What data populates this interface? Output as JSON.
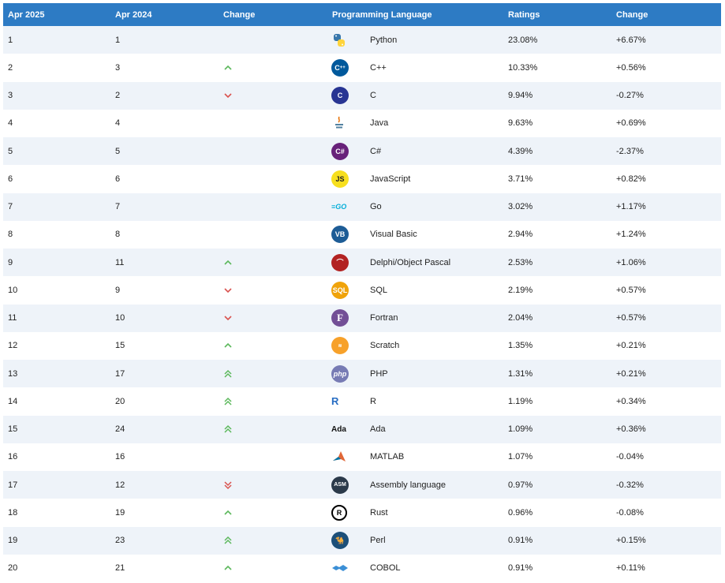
{
  "header": {
    "rank_now": "Apr 2025",
    "rank_prev": "Apr 2024",
    "change": "Change",
    "language": "Programming Language",
    "ratings": "Ratings",
    "ratings_change": "Change"
  },
  "colors": {
    "header_bg": "#2d7bc4",
    "up": "#5cb85c",
    "down": "#d9534f"
  },
  "rows": [
    {
      "now": "1",
      "prev": "1",
      "trend": "none",
      "icon": "python-icon",
      "lang": "Python",
      "rating": "23.08%",
      "delta": "+6.67%"
    },
    {
      "now": "2",
      "prev": "3",
      "trend": "up",
      "icon": "cpp-icon",
      "lang": "C++",
      "rating": "10.33%",
      "delta": "+0.56%"
    },
    {
      "now": "3",
      "prev": "2",
      "trend": "down",
      "icon": "c-icon",
      "lang": "C",
      "rating": "9.94%",
      "delta": "-0.27%"
    },
    {
      "now": "4",
      "prev": "4",
      "trend": "none",
      "icon": "java-icon",
      "lang": "Java",
      "rating": "9.63%",
      "delta": "+0.69%"
    },
    {
      "now": "5",
      "prev": "5",
      "trend": "none",
      "icon": "csharp-icon",
      "lang": "C#",
      "rating": "4.39%",
      "delta": "-2.37%"
    },
    {
      "now": "6",
      "prev": "6",
      "trend": "none",
      "icon": "javascript-icon",
      "lang": "JavaScript",
      "rating": "3.71%",
      "delta": "+0.82%"
    },
    {
      "now": "7",
      "prev": "7",
      "trend": "none",
      "icon": "go-icon",
      "lang": "Go",
      "rating": "3.02%",
      "delta": "+1.17%"
    },
    {
      "now": "8",
      "prev": "8",
      "trend": "none",
      "icon": "visual-basic-icon",
      "lang": "Visual Basic",
      "rating": "2.94%",
      "delta": "+1.24%"
    },
    {
      "now": "9",
      "prev": "11",
      "trend": "up",
      "icon": "delphi-icon",
      "lang": "Delphi/Object Pascal",
      "rating": "2.53%",
      "delta": "+1.06%"
    },
    {
      "now": "10",
      "prev": "9",
      "trend": "down",
      "icon": "sql-icon",
      "lang": "SQL",
      "rating": "2.19%",
      "delta": "+0.57%"
    },
    {
      "now": "11",
      "prev": "10",
      "trend": "down",
      "icon": "fortran-icon",
      "lang": "Fortran",
      "rating": "2.04%",
      "delta": "+0.57%"
    },
    {
      "now": "12",
      "prev": "15",
      "trend": "up",
      "icon": "scratch-icon",
      "lang": "Scratch",
      "rating": "1.35%",
      "delta": "+0.21%"
    },
    {
      "now": "13",
      "prev": "17",
      "trend": "up2",
      "icon": "php-icon",
      "lang": "PHP",
      "rating": "1.31%",
      "delta": "+0.21%"
    },
    {
      "now": "14",
      "prev": "20",
      "trend": "up2",
      "icon": "r-icon",
      "lang": "R",
      "rating": "1.19%",
      "delta": "+0.34%"
    },
    {
      "now": "15",
      "prev": "24",
      "trend": "up2",
      "icon": "ada-icon",
      "lang": "Ada",
      "rating": "1.09%",
      "delta": "+0.36%"
    },
    {
      "now": "16",
      "prev": "16",
      "trend": "none",
      "icon": "matlab-icon",
      "lang": "MATLAB",
      "rating": "1.07%",
      "delta": "-0.04%"
    },
    {
      "now": "17",
      "prev": "12",
      "trend": "down2",
      "icon": "assembly-icon",
      "lang": "Assembly language",
      "rating": "0.97%",
      "delta": "-0.32%"
    },
    {
      "now": "18",
      "prev": "19",
      "trend": "up",
      "icon": "rust-icon",
      "lang": "Rust",
      "rating": "0.96%",
      "delta": "-0.08%"
    },
    {
      "now": "19",
      "prev": "23",
      "trend": "up2",
      "icon": "perl-icon",
      "lang": "Perl",
      "rating": "0.91%",
      "delta": "+0.15%"
    },
    {
      "now": "20",
      "prev": "21",
      "trend": "up",
      "icon": "cobol-icon",
      "lang": "COBOL",
      "rating": "0.91%",
      "delta": "+0.11%"
    }
  ]
}
